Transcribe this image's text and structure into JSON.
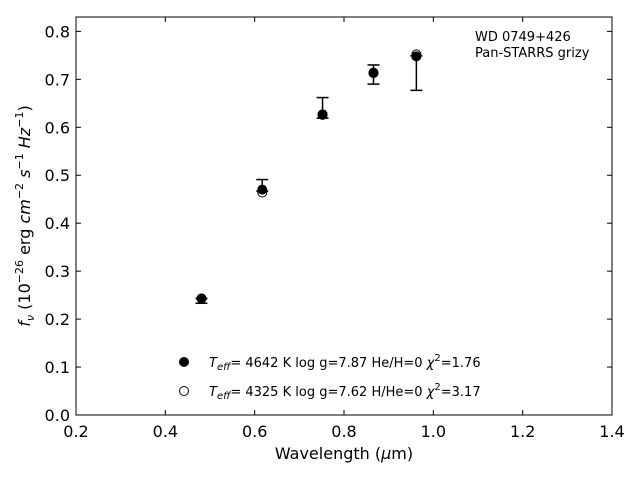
{
  "chart_data": {
    "type": "scatter",
    "title": "",
    "xlabel": "Wavelength (μm)",
    "ylabel": "fν (10⁻²⁶ erg cm⁻² s⁻¹ Hz⁻¹)",
    "xlim": [
      0.2,
      1.4
    ],
    "ylim": [
      0.0,
      0.83
    ],
    "x_ticks": [
      "0.2",
      "0.4",
      "0.6",
      "0.8",
      "1.0",
      "1.2",
      "1.4"
    ],
    "y_ticks": [
      "0.0",
      "0.1",
      "0.2",
      "0.3",
      "0.4",
      "0.5",
      "0.6",
      "0.7",
      "0.8"
    ],
    "grid": false,
    "annotation": {
      "line1": "WD 0749+426",
      "line2": "Pan-STARRS grizy"
    },
    "observed": {
      "x": [
        0.481,
        0.617,
        0.752,
        0.866,
        0.962
      ],
      "y": [
        0.238,
        0.475,
        0.627,
        0.71,
        0.745
      ],
      "err_low": [
        0.005,
        0.008,
        0.008,
        0.02,
        0.068
      ],
      "err_high": [
        0.005,
        0.016,
        0.035,
        0.02,
        0.004
      ]
    },
    "series": [
      {
        "name": "He/H=0",
        "marker": "filled",
        "legend_label": {
          "teff": "4642 K",
          "logg": "log g=7.87",
          "comp": "He/H=0",
          "chi2": "=1.76"
        },
        "x": [
          0.481,
          0.617,
          0.752,
          0.866,
          0.962
        ],
        "y": [
          0.243,
          0.47,
          0.627,
          0.713,
          0.748
        ]
      },
      {
        "name": "H/He=0",
        "marker": "open",
        "legend_label": {
          "teff": "4325 K",
          "logg": "log g=7.62",
          "comp": "H/He=0",
          "chi2": "=3.17"
        },
        "x": [
          0.481,
          0.617,
          0.752,
          0.866,
          0.962
        ],
        "y": [
          0.243,
          0.464,
          0.626,
          0.714,
          0.752
        ]
      }
    ],
    "legend_position": "bottom-center"
  }
}
